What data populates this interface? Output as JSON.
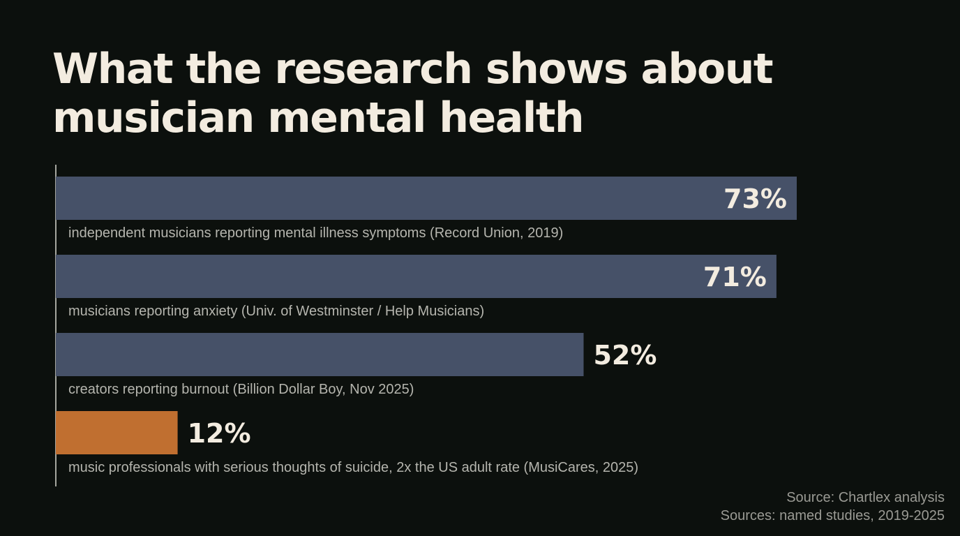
{
  "title": "What the research shows about musician mental health",
  "chart_data": {
    "type": "bar",
    "orientation": "horizontal",
    "title": "What the research shows about musician mental health",
    "categories": [
      "independent musicians reporting mental illness symptoms (Record Union, 2019)",
      "musicians reporting anxiety (Univ. of Westminster / Help Musicians)",
      "creators reporting burnout (Billion Dollar Boy, Nov 2025)",
      "music professionals with serious thoughts of suicide, 2x the US adult rate (MusiCares, 2025)"
    ],
    "values": [
      73,
      71,
      52,
      12
    ],
    "value_labels": [
      "73%",
      "71%",
      "52%",
      "12%"
    ],
    "highlight_index": 3,
    "xlim": [
      0,
      100
    ],
    "grid": false,
    "legend": "none",
    "colors": {
      "bar": "#465168",
      "highlight": "#c06f30",
      "background": "#0c100d",
      "text": "#f3ece0",
      "label": "#b5b5ae",
      "axis": "#d8d8d0"
    }
  },
  "source": {
    "line1": "Source: Chartlex analysis",
    "line2": "Sources: named studies, 2019-2025"
  }
}
